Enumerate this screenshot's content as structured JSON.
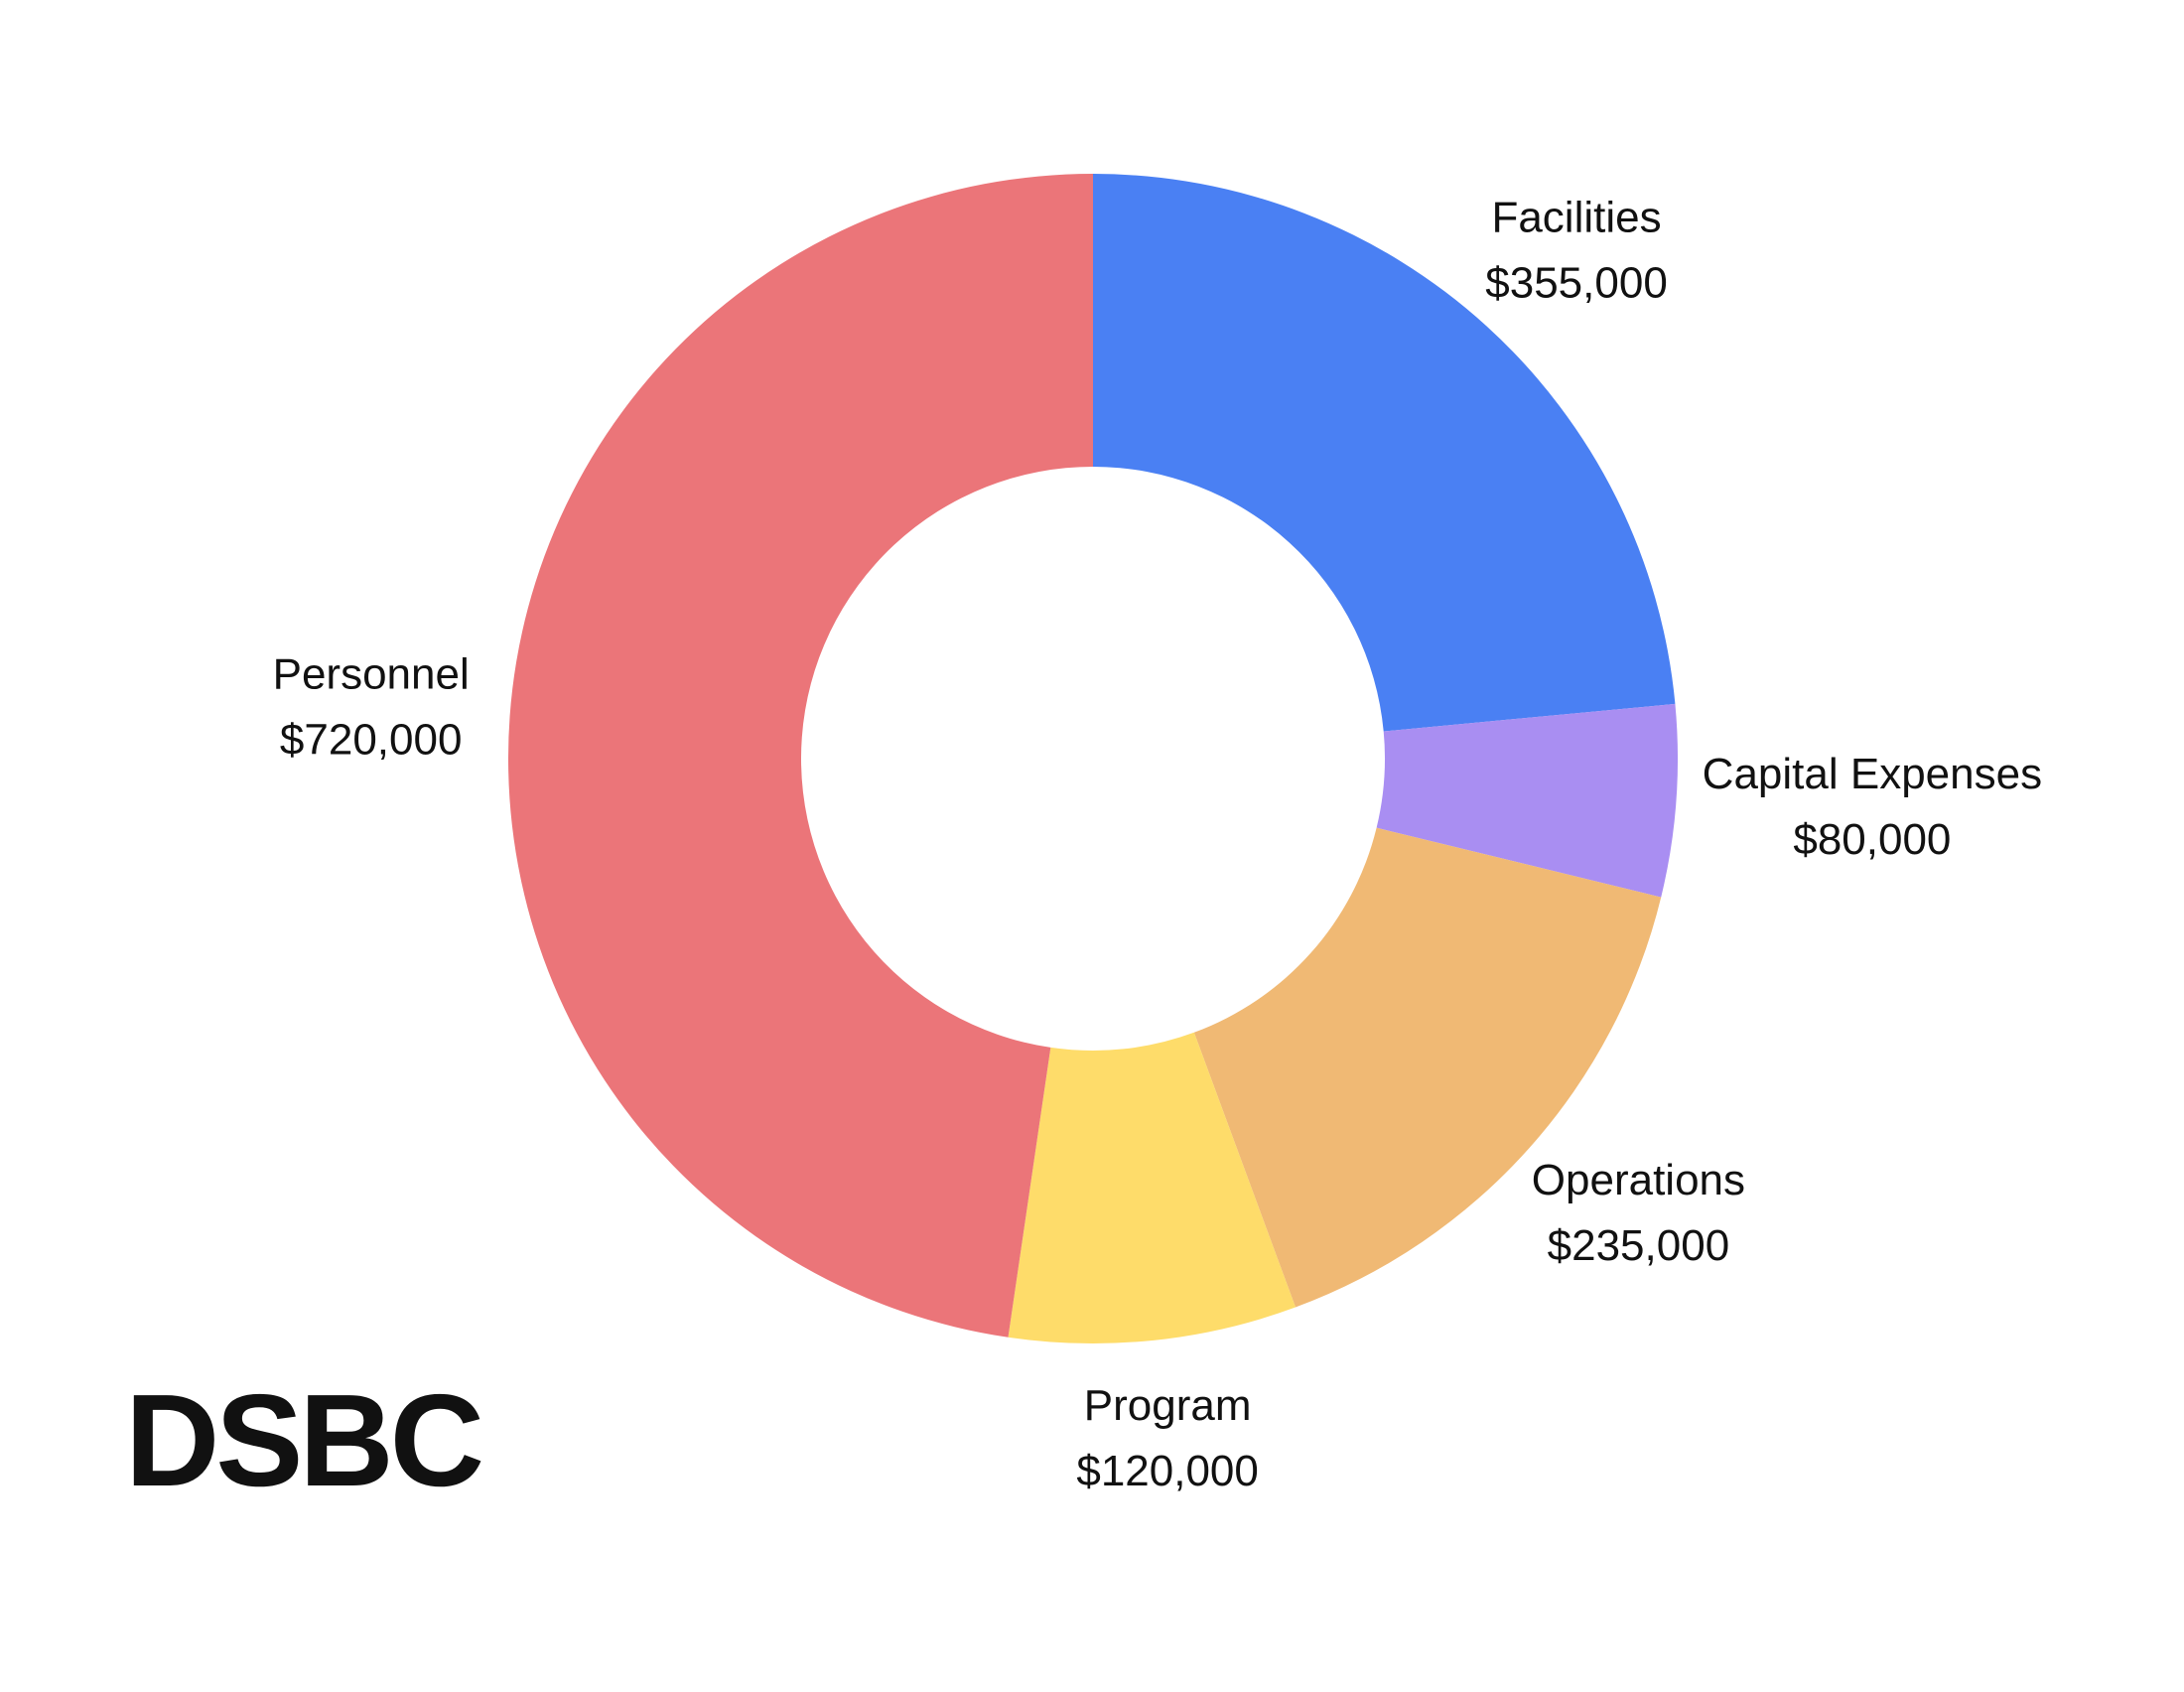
{
  "chart_data": {
    "type": "donut",
    "categories": [
      "Facilities",
      "Capital Expenses",
      "Operations",
      "Program",
      "Personnel"
    ],
    "values": [
      355000,
      80000,
      235000,
      120000,
      720000
    ],
    "value_labels": [
      "$355,000",
      "$80,000",
      "$235,000",
      "$120,000",
      "$720,000"
    ],
    "colors": [
      "#4a80f3",
      "#a98ef2",
      "#f0b974",
      "#fedc6a",
      "#eb7579"
    ]
  },
  "brand": "DSBC"
}
